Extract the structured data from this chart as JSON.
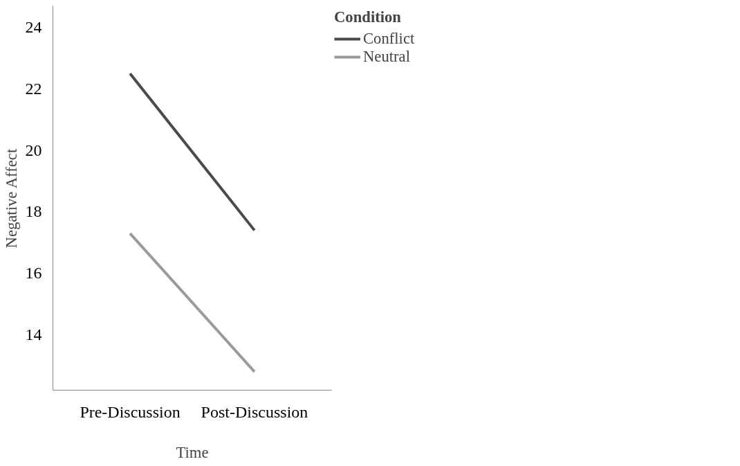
{
  "chart_data": {
    "type": "line",
    "xlabel": "Time",
    "ylabel": "Negative Affect",
    "legend_title": "Condition",
    "categories": [
      "Pre-Discussion",
      "Post-Discussion"
    ],
    "series": [
      {
        "name": "Conflict",
        "color": "#4a4a4a",
        "values": [
          22.5,
          17.4
        ]
      },
      {
        "name": "Neutral",
        "color": "#9a9a9a",
        "values": [
          17.3,
          12.8
        ]
      }
    ],
    "ylim": [
      12.2,
      24.7
    ],
    "yticks": [
      14,
      16,
      18,
      20,
      22,
      24
    ],
    "grid": false,
    "legend": "top right",
    "marker": "none",
    "line_style": "solid"
  }
}
